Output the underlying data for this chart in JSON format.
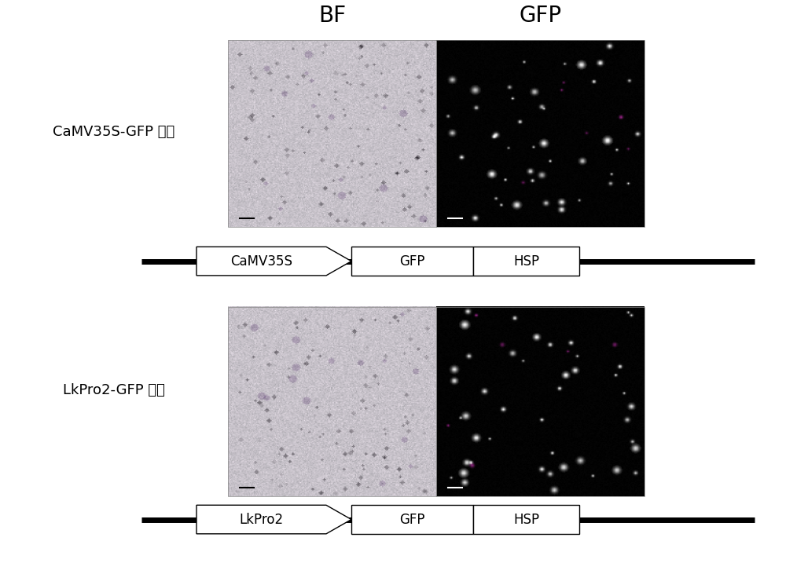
{
  "title_bf": "BF",
  "title_gfp": "GFP",
  "row1_label": "CaMV35S-GFP 质粒",
  "row2_label": "LkPro2-GFP 质粒",
  "diagram1_promoter": "CaMV35S",
  "diagram1_gene1": "GFP",
  "diagram1_gene2": "HSP",
  "diagram2_promoter": "LkPro2",
  "diagram2_gene1": "GFP",
  "diagram2_gene2": "HSP",
  "bg_color": "#ffffff",
  "title_fontsize": 20,
  "label_fontsize": 13,
  "diagram_fontsize": 12
}
